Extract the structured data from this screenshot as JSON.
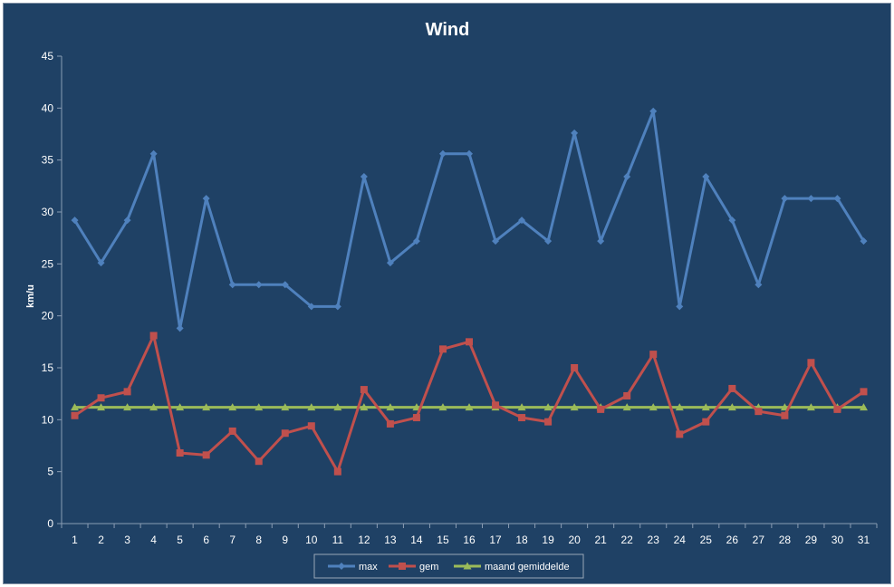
{
  "chart_data": {
    "type": "line",
    "title": "Wind",
    "xlabel": "",
    "ylabel": "km/u",
    "ylim": [
      0,
      45
    ],
    "yticks": [
      0,
      5,
      10,
      15,
      20,
      25,
      30,
      35,
      40,
      45
    ],
    "categories": [
      "1",
      "2",
      "3",
      "4",
      "5",
      "6",
      "7",
      "8",
      "9",
      "10",
      "11",
      "12",
      "13",
      "14",
      "15",
      "16",
      "17",
      "18",
      "19",
      "20",
      "21",
      "22",
      "23",
      "24",
      "25",
      "26",
      "27",
      "28",
      "29",
      "30",
      "31"
    ],
    "grid": false,
    "legend_position": "bottom",
    "series": [
      {
        "name": "max",
        "color": "#4f81bd",
        "marker": "diamond",
        "values": [
          29.2,
          25.1,
          29.2,
          35.6,
          18.8,
          31.3,
          23.0,
          23.0,
          23.0,
          20.9,
          20.9,
          33.4,
          25.1,
          27.2,
          35.6,
          35.6,
          27.2,
          29.2,
          27.2,
          37.6,
          27.2,
          33.4,
          39.7,
          20.9,
          33.4,
          29.2,
          23.0,
          31.3,
          31.3,
          31.3,
          27.2
        ]
      },
      {
        "name": "gem",
        "color": "#c0504d",
        "marker": "square",
        "values": [
          10.4,
          12.1,
          12.7,
          18.1,
          6.8,
          6.6,
          8.9,
          6.0,
          8.7,
          9.4,
          5.0,
          12.9,
          9.6,
          10.2,
          16.8,
          17.5,
          11.4,
          10.2,
          9.8,
          15.0,
          11.0,
          12.3,
          16.3,
          8.6,
          9.8,
          13.0,
          10.8,
          10.4,
          15.5,
          11.0,
          12.7
        ]
      },
      {
        "name": "maand gemiddelde",
        "color": "#9bbb59",
        "marker": "triangle",
        "values": [
          11.2,
          11.2,
          11.2,
          11.2,
          11.2,
          11.2,
          11.2,
          11.2,
          11.2,
          11.2,
          11.2,
          11.2,
          11.2,
          11.2,
          11.2,
          11.2,
          11.2,
          11.2,
          11.2,
          11.2,
          11.2,
          11.2,
          11.2,
          11.2,
          11.2,
          11.2,
          11.2,
          11.2,
          11.2,
          11.2,
          11.2
        ]
      }
    ]
  }
}
